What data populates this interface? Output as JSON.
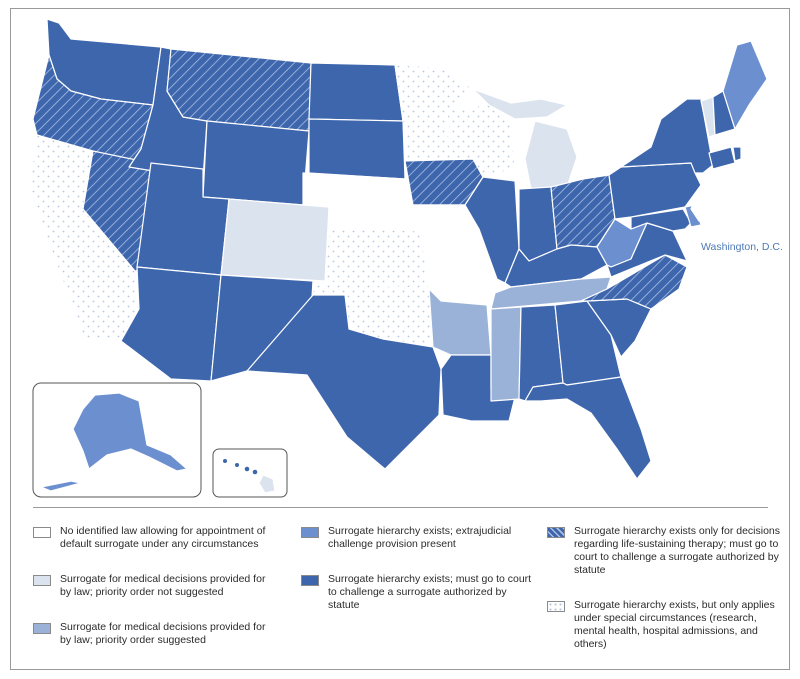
{
  "map": {
    "dc_label": "Washington, D.C."
  },
  "colors": {
    "none": "#ffffff",
    "no_order": "#dbe3ee",
    "order": "#9bb2d8",
    "extrajudicial": "#6b8fcf",
    "court": "#3e66ad",
    "hatch_base": "#3e66ad",
    "dots": "#b6c6db",
    "line": "#9a9a9a"
  },
  "legend": {
    "items": [
      {
        "key": "none",
        "text": "No identified law allowing for appointment of default surrogate under any circumstances"
      },
      {
        "key": "no_order",
        "text": "Surrogate for medical decisions provided for by law; priority order not suggested"
      },
      {
        "key": "order",
        "text": "Surrogate for medical decisions provided for by law; priority order suggested"
      },
      {
        "key": "extrajudicial",
        "text": "Surrogate hierarchy exists; extrajudicial challenge provision present"
      },
      {
        "key": "court",
        "text": "Surrogate hierarchy exists; must go to court to challenge a surrogate authorized by statute"
      },
      {
        "key": "life",
        "text": "Surrogate hierarchy exists only for decisions regarding life-sustaining therapy; must go to court to challenge a surrogate authorized by statute"
      },
      {
        "key": "special",
        "text": "Surrogate hierarchy exists, but only applies under special circumstances (research, mental health, hospital admissions, and others)"
      }
    ]
  }
}
